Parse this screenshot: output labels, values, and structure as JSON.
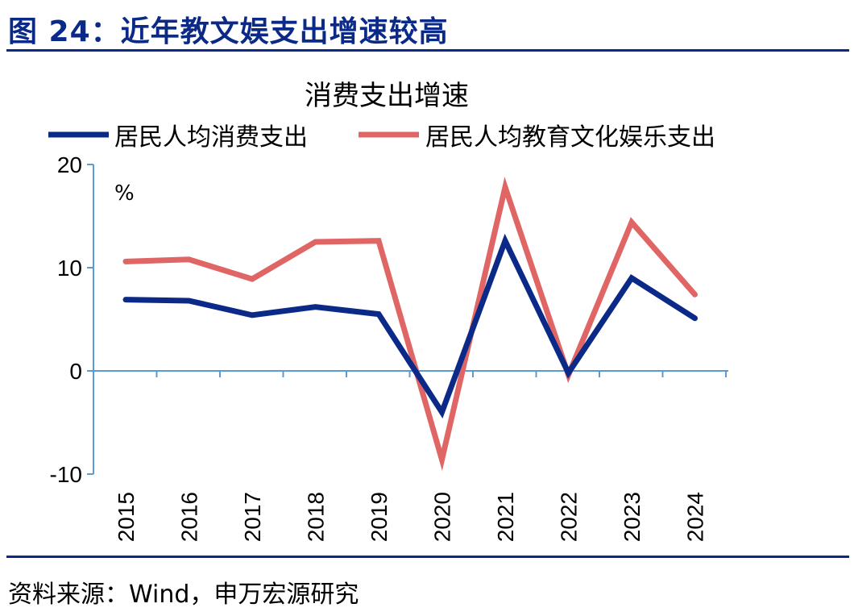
{
  "figure_title": "图 24：近年教文娱支出增速较高",
  "source_note": "资料来源：Wind，申万宏源研究",
  "colors": {
    "title_blue": "#0b2a87",
    "series_consumption": "#0b2a87",
    "series_education": "#e06666",
    "axis": "#5b9bd5"
  },
  "chart_data": {
    "type": "line",
    "title": "消费支出增速",
    "unit_label": "%",
    "categories": [
      "2015",
      "2016",
      "2017",
      "2018",
      "2019",
      "2020",
      "2021",
      "2022",
      "2023",
      "2024"
    ],
    "series": [
      {
        "name": "居民人均消费支出",
        "values": [
          6.9,
          6.8,
          5.4,
          6.2,
          5.5,
          -4.0,
          12.6,
          -0.2,
          9.0,
          5.1
        ]
      },
      {
        "name": "居民人均教育文化娱乐支出",
        "values": [
          10.6,
          10.8,
          8.9,
          12.5,
          12.6,
          -8.6,
          17.8,
          -0.4,
          14.4,
          7.4
        ]
      }
    ],
    "y_ticks": [
      20,
      10,
      0,
      -10
    ],
    "ylim": [
      -10,
      20
    ],
    "legend_position": "top",
    "grid": false
  }
}
